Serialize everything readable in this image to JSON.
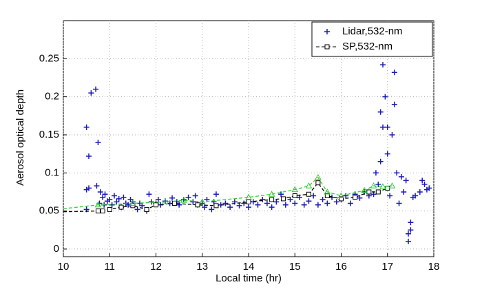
{
  "chart_data": {
    "type": "combo",
    "xlabel": "Local time (hr)",
    "ylabel": "Aerosol optical depth",
    "xlim": [
      10,
      18
    ],
    "xticks": [
      10,
      11,
      12,
      13,
      14,
      15,
      16,
      17,
      18
    ],
    "ylim": [
      -0.01,
      0.3
    ],
    "yticks": [
      0,
      0.05,
      0.1,
      0.15,
      0.2,
      0.25
    ],
    "grid": true,
    "legend": "upper right",
    "series": [
      {
        "name": "Lidar,532-nm",
        "type": "scatter",
        "marker": "plus",
        "color": "#1a1ab8",
        "x": [
          10.5,
          10.5,
          10.5,
          10.55,
          10.55,
          10.6,
          10.7,
          10.72,
          10.75,
          10.78,
          10.8,
          10.85,
          10.88,
          10.9,
          10.95,
          11.0,
          11.05,
          11.1,
          11.15,
          11.2,
          11.25,
          11.3,
          11.35,
          11.4,
          11.45,
          11.5,
          11.6,
          11.65,
          11.7,
          11.8,
          11.85,
          11.9,
          12.0,
          12.05,
          12.1,
          12.2,
          12.3,
          12.35,
          12.45,
          12.5,
          12.6,
          12.7,
          12.8,
          12.85,
          12.9,
          13.0,
          13.05,
          13.1,
          13.2,
          13.25,
          13.3,
          13.4,
          13.5,
          13.6,
          13.7,
          13.8,
          13.9,
          14.0,
          14.1,
          14.2,
          14.3,
          14.4,
          14.5,
          14.6,
          14.7,
          14.8,
          14.9,
          15.0,
          15.1,
          15.2,
          15.3,
          15.4,
          15.5,
          15.6,
          15.7,
          15.8,
          15.9,
          16.0,
          16.1,
          16.2,
          16.3,
          16.4,
          16.5,
          16.6,
          16.7,
          16.75,
          16.8,
          16.85,
          16.85,
          16.9,
          16.9,
          16.95,
          17.0,
          17.0,
          17.05,
          17.1,
          17.15,
          17.15,
          17.2,
          17.25,
          17.3,
          17.35,
          17.4,
          17.45,
          17.45,
          17.5,
          17.5,
          17.55,
          17.6,
          17.7,
          17.75,
          17.8,
          17.85,
          17.9
        ],
        "values": [
          0.052,
          0.078,
          0.16,
          0.122,
          0.08,
          0.205,
          0.21,
          0.083,
          0.14,
          0.06,
          0.075,
          0.068,
          0.058,
          0.072,
          0.063,
          0.065,
          0.058,
          0.07,
          0.062,
          0.066,
          0.055,
          0.068,
          0.06,
          0.058,
          0.065,
          0.062,
          0.052,
          0.06,
          0.057,
          0.05,
          0.072,
          0.062,
          0.06,
          0.065,
          0.058,
          0.063,
          0.06,
          0.067,
          0.062,
          0.058,
          0.065,
          0.068,
          0.062,
          0.07,
          0.058,
          0.06,
          0.055,
          0.065,
          0.052,
          0.062,
          0.072,
          0.058,
          0.06,
          0.055,
          0.062,
          0.057,
          0.06,
          0.055,
          0.062,
          0.058,
          0.065,
          0.06,
          0.055,
          0.062,
          0.072,
          0.058,
          0.065,
          0.06,
          0.068,
          0.058,
          0.063,
          0.07,
          0.058,
          0.065,
          0.06,
          0.068,
          0.062,
          0.065,
          0.07,
          0.06,
          0.072,
          0.067,
          0.075,
          0.07,
          0.072,
          0.1,
          0.085,
          0.115,
          0.18,
          0.242,
          0.16,
          0.2,
          0.125,
          0.16,
          0.07,
          0.15,
          0.232,
          0.19,
          0.1,
          0.06,
          0.095,
          0.075,
          0.09,
          0.01,
          0.02,
          0.035,
          0.025,
          0.068,
          0.07,
          0.075,
          0.09,
          0.085,
          0.078,
          0.08
        ]
      },
      {
        "name": "SP,532-nm",
        "type": "line",
        "marker": "square",
        "dash": true,
        "color": "#000000",
        "x": [
          10.0,
          10.75,
          10.85,
          11.0,
          11.25,
          11.5,
          11.8,
          12.0,
          12.4,
          12.9,
          13.3,
          14.0,
          14.5,
          14.75,
          15.0,
          15.3,
          15.5,
          15.7,
          16.0,
          16.3,
          16.6,
          16.8,
          17.0
        ],
        "values": [
          0.049,
          0.05,
          0.05,
          0.052,
          0.055,
          0.057,
          0.052,
          0.058,
          0.06,
          0.058,
          0.057,
          0.062,
          0.065,
          0.066,
          0.07,
          0.072,
          0.087,
          0.07,
          0.066,
          0.068,
          0.075,
          0.075,
          0.08
        ]
      },
      {
        "type": "line",
        "marker": "triangle",
        "dash": true,
        "color": "#33cc33",
        "x": [
          10.0,
          10.75,
          11.5,
          12.2,
          12.6,
          13.0,
          14.0,
          14.5,
          15.0,
          15.3,
          15.5,
          15.7,
          16.0,
          16.5,
          16.7,
          16.9,
          17.1
        ],
        "values": [
          0.053,
          0.058,
          0.06,
          0.062,
          0.064,
          0.062,
          0.068,
          0.072,
          0.078,
          0.083,
          0.094,
          0.075,
          0.07,
          0.077,
          0.083,
          0.082,
          0.083
        ]
      }
    ]
  }
}
